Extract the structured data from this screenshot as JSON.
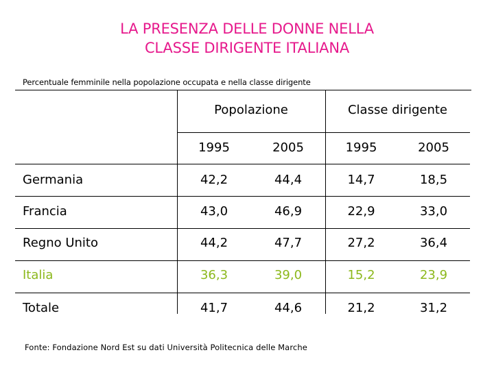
{
  "title_line1": "LA PRESENZA DELLE DONNE NELLA",
  "title_line2": "CLASSE DIRIGENTE ITALIANA",
  "subtitle": "Percentuale femminile nella popolazione occupata e nella classe dirigente",
  "groups": {
    "popolazione": "Popolazione",
    "classe": "Classe dirigente"
  },
  "years": [
    "1995",
    "2005",
    "1995",
    "2005"
  ],
  "rows": [
    {
      "country": "Germania",
      "values": [
        "42,2",
        "44,4",
        "14,7",
        "18,5"
      ]
    },
    {
      "country": "Francia",
      "values": [
        "43,0",
        "46,9",
        "22,9",
        "33,0"
      ]
    },
    {
      "country": "Regno Unito",
      "values": [
        "44,2",
        "47,7",
        "27,2",
        "36,4"
      ]
    },
    {
      "country": "Italia",
      "values": [
        "36,3",
        "39,0",
        "15,2",
        "23,9"
      ],
      "highlight_color": "#8cb81c"
    },
    {
      "country": "Totale",
      "values": [
        "41,7",
        "44,6",
        "21,2",
        "31,2"
      ]
    }
  ],
  "source": "Fonte: Fondazione Nord Est su dati Università Politecnica delle Marche",
  "colors": {
    "title": "#e6198c",
    "highlight": "#8cb81c"
  }
}
